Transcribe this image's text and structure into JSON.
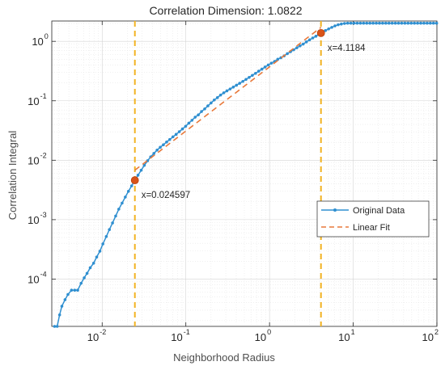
{
  "chart_data": {
    "type": "line",
    "title": "Correlation Dimension: 1.0822",
    "xlabel": "Neighborhood Radius",
    "ylabel": "Correlation Integral",
    "xscale": "log",
    "yscale": "log",
    "xlim": [
      0.0025,
      100
    ],
    "ylim": [
      1.6e-05,
      2.2
    ],
    "grid": true,
    "legend_position": "center-right",
    "x_ticks": [
      {
        "base": "10",
        "exp": "-2",
        "value": 0.01
      },
      {
        "base": "10",
        "exp": "-1",
        "value": 0.1
      },
      {
        "base": "10",
        "exp": "0",
        "value": 1
      },
      {
        "base": "10",
        "exp": "1",
        "value": 10
      },
      {
        "base": "10",
        "exp": "2",
        "value": 100
      }
    ],
    "y_ticks": [
      {
        "base": "10",
        "exp": "-4",
        "value": 0.0001
      },
      {
        "base": "10",
        "exp": "-3",
        "value": 0.001
      },
      {
        "base": "10",
        "exp": "-2",
        "value": 0.01
      },
      {
        "base": "10",
        "exp": "-1",
        "value": 0.1
      },
      {
        "base": "10",
        "exp": "0",
        "value": 1
      }
    ],
    "series": [
      {
        "name": "Original Data",
        "color": "#2f8fd0",
        "style": "line-with-dots",
        "x": [
          0.0027,
          0.0029,
          0.0031,
          0.0033,
          0.0036,
          0.0039,
          0.0043,
          0.0047,
          0.0051,
          0.0056,
          0.0061,
          0.0066,
          0.0072,
          0.0079,
          0.0086,
          0.0094,
          0.0102,
          0.0112,
          0.0122,
          0.0133,
          0.0145,
          0.0158,
          0.0173,
          0.0189,
          0.0206,
          0.0225,
          0.0246,
          0.0268,
          0.0293,
          0.0319,
          0.0349,
          0.038,
          0.0415,
          0.0453,
          0.0494,
          0.0539,
          0.0589,
          0.0642,
          0.0701,
          0.0765,
          0.0835,
          0.0911,
          0.0994,
          0.1085,
          0.1184,
          0.1292,
          0.141,
          0.1539,
          0.168,
          0.1833,
          0.2001,
          0.2183,
          0.2383,
          0.26,
          0.2838,
          0.3097,
          0.338,
          0.3689,
          0.4026,
          0.4394,
          0.4795,
          0.5233,
          0.5711,
          0.6233,
          0.6802,
          0.7424,
          0.8102,
          0.8843,
          0.965,
          1.0532,
          1.1494,
          1.2544,
          1.369,
          1.4941,
          1.6306,
          1.7796,
          1.9422,
          2.1196,
          2.3132,
          2.5246,
          2.7552,
          3.0069,
          3.2817,
          3.5815,
          3.9087,
          4.1184,
          4.6555,
          5.0808,
          5.5449,
          6.0515,
          6.6043,
          7.2077,
          7.8662,
          8.5849,
          9.3692,
          10.225,
          11.159,
          12.179,
          13.291,
          14.506,
          15.831,
          17.277,
          18.856,
          20.578,
          22.458,
          24.51,
          26.749,
          29.193,
          31.86,
          34.771,
          37.947,
          41.414,
          45.198,
          49.327,
          53.834,
          58.752,
          64.119,
          69.977,
          76.37,
          83.347,
          90.961,
          99.271
        ],
        "y": [
          1.6e-05,
          1.6e-05,
          2.5e-05,
          3.5e-05,
          4.5e-05,
          5.5e-05,
          6.5e-05,
          6.5e-05,
          6.5e-05,
          8.5e-05,
          0.000105,
          0.000125,
          0.000155,
          0.000185,
          0.000235,
          0.000295,
          0.00039,
          0.00052,
          0.00068,
          0.00088,
          0.00115,
          0.0015,
          0.0019,
          0.0024,
          0.003,
          0.0037,
          0.0046,
          0.0056,
          0.0068,
          0.0082,
          0.0098,
          0.0114,
          0.013,
          0.0148,
          0.0165,
          0.0182,
          0.0202,
          0.0223,
          0.0247,
          0.0272,
          0.0302,
          0.0336,
          0.0373,
          0.042,
          0.047,
          0.053,
          0.058,
          0.066,
          0.073,
          0.082,
          0.092,
          0.103,
          0.113,
          0.125,
          0.136,
          0.147,
          0.158,
          0.17,
          0.183,
          0.197,
          0.212,
          0.229,
          0.248,
          0.268,
          0.29,
          0.315,
          0.341,
          0.37,
          0.4,
          0.43,
          0.46,
          0.5,
          0.53,
          0.57,
          0.62,
          0.67,
          0.72,
          0.78,
          0.84,
          0.9,
          0.98,
          1.06,
          1.14,
          1.22,
          1.32,
          1.38,
          1.52,
          1.62,
          1.72,
          1.82,
          1.9,
          1.96,
          2.0,
          2.02,
          2.02,
          2.02,
          2.02,
          2.02,
          2.02,
          2.02,
          2.02,
          2.02,
          2.02,
          2.02,
          2.02,
          2.02,
          2.02,
          2.02,
          2.02,
          2.02,
          2.02,
          2.02,
          2.02,
          2.02,
          2.02,
          2.02,
          2.02,
          2.02,
          2.02,
          2.02,
          2.02,
          2.02
        ]
      },
      {
        "name": "Linear Fit",
        "color": "#e8793b",
        "style": "dashed",
        "x": [
          0.024597,
          4.1184
        ],
        "y": [
          0.0068,
          1.72
        ]
      }
    ],
    "vertical_lines": [
      {
        "x": 0.024597,
        "color": "#f2b323"
      },
      {
        "x": 4.1184,
        "color": "#f2b323"
      }
    ],
    "markers": [
      {
        "x": 0.024597,
        "y": 0.0046,
        "color": "#d95319",
        "label": "x=0.024597"
      },
      {
        "x": 4.1184,
        "y": 1.38,
        "color": "#d95319",
        "label": "x=4.1184"
      }
    ]
  }
}
